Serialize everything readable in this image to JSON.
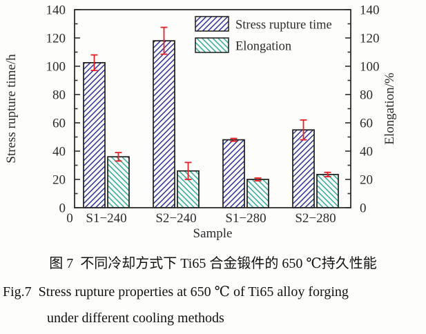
{
  "figure": {
    "caption_cn": "图 7  不同冷却方式下 Ti65 合金锻件的 650 ℃持久性能",
    "caption_en_line1": "Fig.7  Stress rupture properties at 650 ℃ of Ti65 alloy forging",
    "caption_en_line2": "under different cooling methods"
  },
  "chart_data": {
    "type": "bar",
    "title": "",
    "categories": [
      "S1−240",
      "S2−240",
      "S1−280",
      "S2−280"
    ],
    "series": [
      {
        "name": "Stress rupture time",
        "axis": "left",
        "values": [
          102.5,
          118,
          48,
          55
        ],
        "errors": [
          5.5,
          9.5,
          1,
          7
        ],
        "hatch": "/",
        "hatch_color": "#31319b"
      },
      {
        "name": "Elongation",
        "axis": "right",
        "values": [
          36,
          26,
          20,
          23.5
        ],
        "errors": [
          3,
          6,
          1,
          1.5
        ],
        "hatch": "\\",
        "hatch_color": "#30ab9d"
      }
    ],
    "xlabel": "Sample",
    "ylabel_left": "Stress rupture time/h",
    "ylabel_right": "Elongation/%",
    "ylim": [
      0,
      140
    ],
    "tick_major": 20,
    "tick_minor": 10,
    "x_origin_label": "0",
    "legend": [
      "Stress rupture time",
      "Elongation"
    ],
    "legend_position": "top-right-inside",
    "grid": false,
    "colors": {
      "error_bar": "#e61f26",
      "axis": "#2b2b2b",
      "bar_face": "#fbfbf7",
      "bar_edge": "#1c1c1c"
    }
  }
}
